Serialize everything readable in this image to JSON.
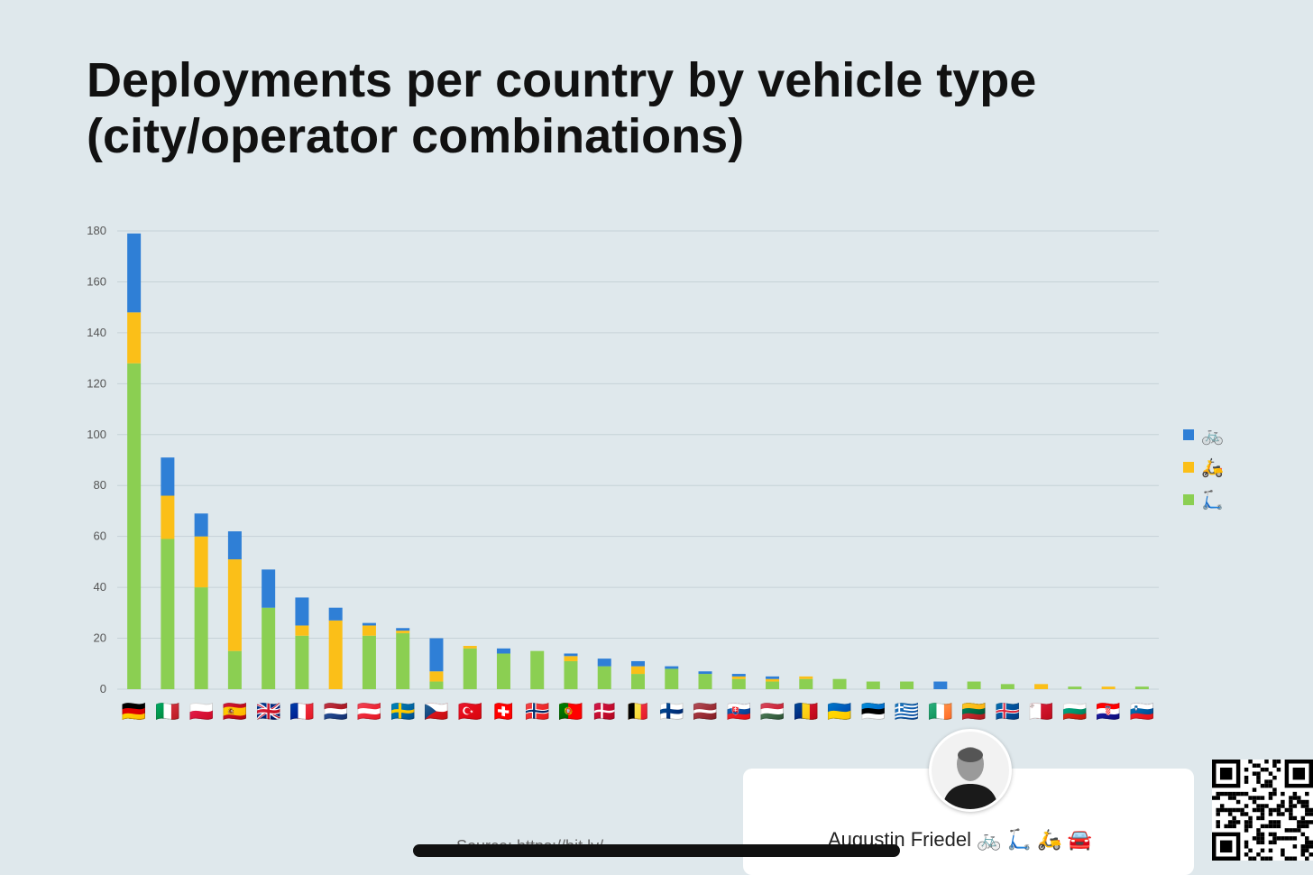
{
  "title_lines": [
    "Deployments per country by vehicle type",
    "(city/operator combinations)"
  ],
  "colors": {
    "bike": "#2f7fd6",
    "moped": "#fbbf18",
    "scooter": "#8bcf52",
    "grid": "#c6d2d7"
  },
  "legend": [
    {
      "icon": "🚲",
      "color": "#2f7fd6",
      "icon_name": "bicycle-icon"
    },
    {
      "icon": "🛵",
      "color": "#fbbf18",
      "icon_name": "moped-icon"
    },
    {
      "icon": "🛴",
      "color": "#8bcf52",
      "icon_name": "kick-scooter-icon"
    }
  ],
  "chart_data": {
    "type": "bar",
    "stacked": true,
    "categories": [
      "🇩🇪",
      "🇮🇹",
      "🇵🇱",
      "🇪🇸",
      "🇬🇧",
      "🇫🇷",
      "🇳🇱",
      "🇦🇹",
      "🇸🇪",
      "🇨🇿",
      "🇹🇷",
      "🇨🇭",
      "🇳🇴",
      "🇵🇹",
      "🇩🇰",
      "🇧🇪",
      "🇫🇮",
      "🇱🇻",
      "🇸🇰",
      "🇭🇺",
      "🇷🇴",
      "🇺🇦",
      "🇪🇪",
      "🇬🇷",
      "🇮🇪",
      "🇱🇹",
      "🇮🇸",
      "🇲🇹",
      "🇧🇬",
      "🇭🇷",
      "🇸🇮"
    ],
    "category_names": [
      "Germany",
      "Italy",
      "Poland",
      "Spain",
      "United Kingdom",
      "France",
      "Netherlands",
      "Austria",
      "Sweden",
      "Czechia",
      "Turkey",
      "Switzerland",
      "Norway",
      "Portugal",
      "Denmark",
      "Belgium",
      "Finland",
      "Latvia",
      "Slovakia",
      "Hungary",
      "Romania",
      "Ukraine",
      "Estonia",
      "Greece",
      "Ireland",
      "Lithuania",
      "Iceland",
      "Malta",
      "Bulgaria",
      "Croatia",
      "Slovenia"
    ],
    "series": [
      {
        "key": "scooter",
        "values": [
          128,
          59,
          40,
          15,
          32,
          21,
          0,
          21,
          22,
          3,
          16,
          14,
          15,
          11,
          9,
          6,
          8,
          6,
          4,
          3,
          4,
          4,
          3,
          3,
          0,
          3,
          2,
          0,
          1,
          0,
          1
        ]
      },
      {
        "key": "moped",
        "values": [
          20,
          17,
          20,
          36,
          0,
          4,
          27,
          4,
          1,
          4,
          1,
          0,
          0,
          2,
          0,
          3,
          0,
          0,
          1,
          1,
          1,
          0,
          0,
          0,
          0,
          0,
          0,
          2,
          0,
          1,
          0
        ]
      },
      {
        "key": "bike",
        "values": [
          31,
          15,
          9,
          11,
          15,
          11,
          5,
          1,
          1,
          13,
          0,
          2,
          0,
          1,
          3,
          2,
          1,
          1,
          1,
          1,
          0,
          0,
          0,
          0,
          3,
          0,
          0,
          0,
          0,
          0,
          0
        ]
      }
    ],
    "ylim": [
      0,
      180
    ],
    "yticks": [
      0,
      20,
      40,
      60,
      80,
      100,
      120,
      140,
      160,
      180
    ],
    "grid": true,
    "legend_position": "right"
  },
  "footer": {
    "author": "Augustin Friedel 🚲 🛴 🛵 🚘",
    "source_partial": "Source: https://bit.ly/..."
  }
}
